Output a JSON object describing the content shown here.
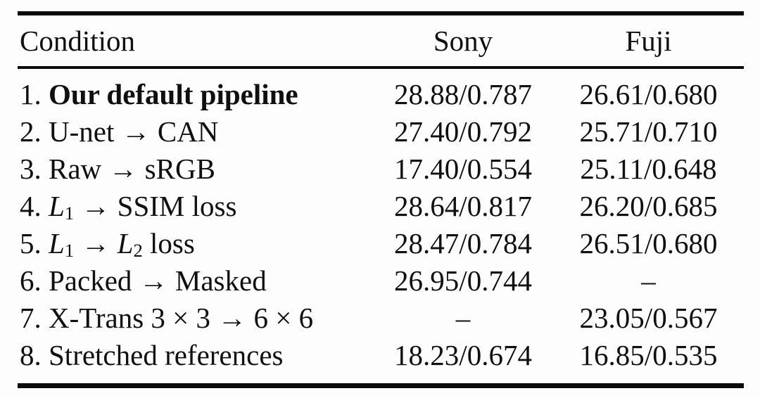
{
  "colors": {
    "background": "#fdfdfd",
    "text": "#101010",
    "rule": "#0b0b0b"
  },
  "chart_data": {
    "type": "table",
    "columns": [
      "Condition",
      "Sony",
      "Fuji"
    ],
    "value_format": "PSNR/SSIM",
    "rows": [
      {
        "label_parts": [
          {
            "text": "1. "
          },
          {
            "text": "Our default pipeline",
            "bold": true
          }
        ],
        "sony": "28.88/0.787",
        "fuji": "26.61/0.680"
      },
      {
        "label_parts": [
          {
            "text": "2. U-net → CAN"
          }
        ],
        "sony": "27.40/0.792",
        "fuji": "25.71/0.710"
      },
      {
        "label_parts": [
          {
            "text": "3. Raw → sRGB"
          }
        ],
        "sony": "17.40/0.554",
        "fuji": "25.11/0.648"
      },
      {
        "label_parts": [
          {
            "text": "4. "
          },
          {
            "text": "L",
            "italic": true
          },
          {
            "text": "1",
            "sub": true
          },
          {
            "text": " → SSIM loss"
          }
        ],
        "sony": "28.64/0.817",
        "fuji": "26.20/0.685"
      },
      {
        "label_parts": [
          {
            "text": "5. "
          },
          {
            "text": "L",
            "italic": true
          },
          {
            "text": "1",
            "sub": true
          },
          {
            "text": " → "
          },
          {
            "text": "L",
            "italic": true
          },
          {
            "text": "2",
            "sub": true
          },
          {
            "text": " loss"
          }
        ],
        "sony": "28.47/0.784",
        "fuji": "26.51/0.680"
      },
      {
        "label_parts": [
          {
            "text": "6. Packed → Masked"
          }
        ],
        "sony": "26.95/0.744",
        "fuji": "–"
      },
      {
        "label_parts": [
          {
            "text": "7. X-Trans 3 × 3 → 6 × 6"
          }
        ],
        "sony": "–",
        "fuji": "23.05/0.567"
      },
      {
        "label_parts": [
          {
            "text": "8. Stretched references"
          }
        ],
        "sony": "18.23/0.674",
        "fuji": "16.85/0.535"
      }
    ]
  }
}
